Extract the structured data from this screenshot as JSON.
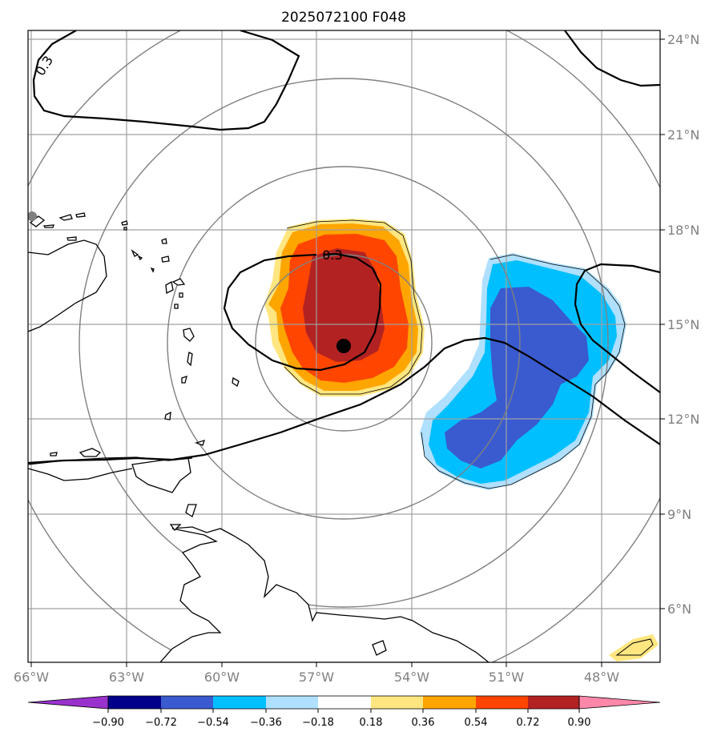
{
  "title": "2025072100 F048",
  "map": {
    "lon_ticks": [
      "66°W",
      "63°W",
      "60°W",
      "57°W",
      "54°W",
      "51°W",
      "48°W"
    ],
    "lat_ticks": [
      "24°N",
      "21°N",
      "18°N",
      "15°N",
      "12°N",
      "9°N",
      "6°N"
    ],
    "contour_labels": [
      "0.3",
      "0.3"
    ],
    "center": {
      "lon": -56.0,
      "lat": 14.3
    },
    "land_color": "#ffffff",
    "coast_color": "#000000",
    "grid_color": "#a0a0a0",
    "ring_color": "#808080"
  },
  "colorbar": {
    "tick_labels": [
      "−0.90",
      "−0.72",
      "−0.54",
      "−0.36",
      "−0.18",
      "0.18",
      "0.36",
      "0.54",
      "0.72",
      "0.90"
    ],
    "colors": [
      "#9932cc",
      "#00008b",
      "#3a5bd0",
      "#00bfff",
      "#b0e0ff",
      "#ffffff",
      "#ffe680",
      "#ffa500",
      "#ff4500",
      "#b22222",
      "#ff88aa"
    ]
  }
}
